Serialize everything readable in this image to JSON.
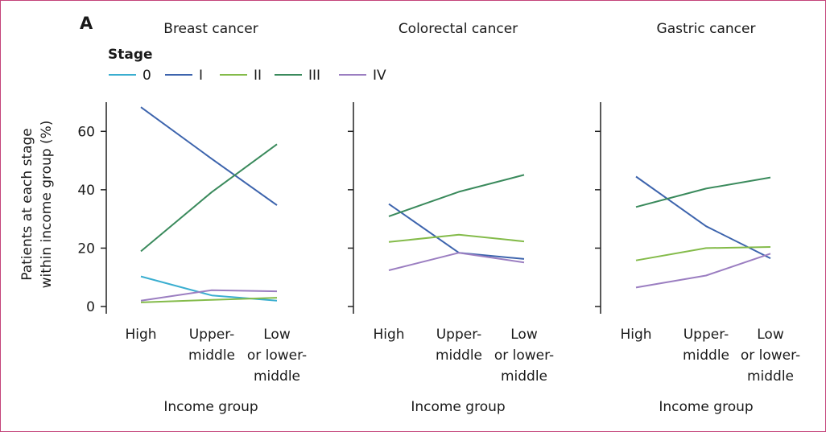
{
  "panel_label": "A",
  "legend": {
    "title": "Stage",
    "entries": [
      {
        "label": "0",
        "color": "#3aaed0"
      },
      {
        "label": "I",
        "color": "#3d64ad"
      },
      {
        "label": "II",
        "color": "#84bb4a"
      },
      {
        "label": "III",
        "color": "#3a8a5c"
      },
      {
        "label": "IV",
        "color": "#9b7ec1"
      }
    ]
  },
  "y_axis_label_lines": [
    "Patients at each stage",
    "within income group (%)"
  ],
  "chart_data": [
    {
      "type": "line",
      "title": "Breast cancer",
      "xlabel": "Income group",
      "ylabel": "Patients at each stage within income group (%)",
      "categories": [
        [
          "High"
        ],
        [
          "Upper-",
          "middle"
        ],
        [
          "Low",
          "or lower-",
          "middle"
        ]
      ],
      "ylim": [
        0,
        70
      ],
      "yticks": [
        0,
        20,
        40,
        60
      ],
      "grid": false,
      "legend_position": "top-left",
      "series": [
        {
          "name": "0",
          "values": [
            10.3,
            3.8,
            2.0
          ]
        },
        {
          "name": "I",
          "values": [
            68.3,
            50.6,
            34.7
          ]
        },
        {
          "name": "II",
          "values": [
            1.4,
            2.3,
            3.0
          ]
        },
        {
          "name": "III",
          "values": [
            18.9,
            39.2,
            55.6
          ]
        },
        {
          "name": "IV",
          "values": [
            2.0,
            5.6,
            5.2
          ]
        }
      ]
    },
    {
      "type": "line",
      "title": "Colorectal cancer",
      "xlabel": "Income group",
      "ylabel": "",
      "categories": [
        [
          "High"
        ],
        [
          "Upper-",
          "middle"
        ],
        [
          "Low",
          "or lower-",
          "middle"
        ]
      ],
      "ylim": [
        0,
        70
      ],
      "yticks": [
        0,
        20,
        40,
        60
      ],
      "grid": false,
      "series": [
        {
          "name": "0",
          "values": [
            null,
            null,
            null
          ]
        },
        {
          "name": "I",
          "values": [
            35.1,
            18.4,
            16.3
          ]
        },
        {
          "name": "II",
          "values": [
            22.1,
            24.6,
            22.3
          ]
        },
        {
          "name": "III",
          "values": [
            30.9,
            39.3,
            45.1
          ]
        },
        {
          "name": "IV",
          "values": [
            12.4,
            18.4,
            15.1
          ]
        }
      ]
    },
    {
      "type": "line",
      "title": "Gastric cancer",
      "xlabel": "Income group",
      "ylabel": "",
      "categories": [
        [
          "High"
        ],
        [
          "Upper-",
          "middle"
        ],
        [
          "Low",
          "or lower-",
          "middle"
        ]
      ],
      "ylim": [
        0,
        70
      ],
      "yticks": [
        0,
        20,
        40,
        60
      ],
      "grid": false,
      "series": [
        {
          "name": "0",
          "values": [
            null,
            null,
            null
          ]
        },
        {
          "name": "I",
          "values": [
            44.5,
            27.5,
            16.5
          ]
        },
        {
          "name": "II",
          "values": [
            15.8,
            20.0,
            20.4
          ]
        },
        {
          "name": "III",
          "values": [
            34.1,
            40.4,
            44.2
          ]
        },
        {
          "name": "IV",
          "values": [
            6.5,
            10.6,
            18.1
          ]
        }
      ]
    }
  ]
}
